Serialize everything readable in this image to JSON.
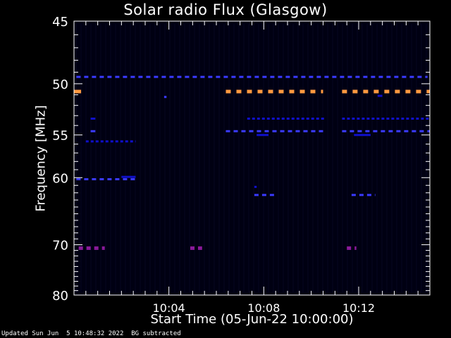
{
  "footer": {
    "updated": "Updated Sun Jun  5 10:48:32 2022",
    "mode": "BG subtracted"
  },
  "chart_data": {
    "type": "heatmap",
    "title": "Solar radio Flux (Glasgow)",
    "xlabel": "Start Time (05-Jun-22 10:00:00)",
    "ylabel": "Frequency [MHz]",
    "x_range_minutes": [
      0,
      15
    ],
    "x_ticks": [
      {
        "minute": 4,
        "label": "10:04"
      },
      {
        "minute": 8,
        "label": "10:08"
      },
      {
        "minute": 12,
        "label": "10:12"
      }
    ],
    "y_range_mhz": [
      45,
      80
    ],
    "y_reciprocal": true,
    "y_ticks": [
      {
        "mhz": 45,
        "label": "45"
      },
      {
        "mhz": 50,
        "label": "50"
      },
      {
        "mhz": 55,
        "label": "55"
      },
      {
        "mhz": 60,
        "label": "60"
      },
      {
        "mhz": 70,
        "label": "70"
      },
      {
        "mhz": 80,
        "label": "80"
      }
    ],
    "background_color": "#000012",
    "colors": {
      "weak": "#1010c8",
      "medium": "#3a3aff",
      "strong": "#8a1a9a",
      "hot": "#ff9a40"
    },
    "features": [
      {
        "mhz": 49.4,
        "t_start": 0.1,
        "t_end": 14.9,
        "level": "medium",
        "style": "dashed"
      },
      {
        "mhz": 50.7,
        "t_start": 0.0,
        "t_end": 0.3,
        "level": "hot",
        "style": "solid"
      },
      {
        "mhz": 50.7,
        "t_start": 6.4,
        "t_end": 10.5,
        "level": "hot",
        "style": "dashed"
      },
      {
        "mhz": 50.7,
        "t_start": 11.3,
        "t_end": 15.0,
        "level": "hot",
        "style": "dashed"
      },
      {
        "mhz": 51.2,
        "t_start": 3.8,
        "t_end": 3.9,
        "level": "medium",
        "style": "solid"
      },
      {
        "mhz": 51.1,
        "t_start": 12.8,
        "t_end": 13.0,
        "level": "weak",
        "style": "solid"
      },
      {
        "mhz": 53.3,
        "t_start": 0.7,
        "t_end": 0.9,
        "level": "weak",
        "style": "solid"
      },
      {
        "mhz": 53.3,
        "t_start": 7.3,
        "t_end": 10.6,
        "level": "weak",
        "style": "dashed"
      },
      {
        "mhz": 53.3,
        "t_start": 11.3,
        "t_end": 15.0,
        "level": "weak",
        "style": "dashed"
      },
      {
        "mhz": 54.6,
        "t_start": 0.7,
        "t_end": 0.9,
        "level": "medium",
        "style": "solid"
      },
      {
        "mhz": 54.6,
        "t_start": 6.4,
        "t_end": 10.5,
        "level": "medium",
        "style": "dashed"
      },
      {
        "mhz": 54.6,
        "t_start": 11.3,
        "t_end": 15.0,
        "level": "medium",
        "style": "dashed"
      },
      {
        "mhz": 55.0,
        "t_start": 7.7,
        "t_end": 8.2,
        "level": "weak",
        "style": "solid"
      },
      {
        "mhz": 55.0,
        "t_start": 11.8,
        "t_end": 12.5,
        "level": "weak",
        "style": "solid"
      },
      {
        "mhz": 55.7,
        "t_start": 0.5,
        "t_end": 2.6,
        "level": "weak",
        "style": "dashed"
      },
      {
        "mhz": 60.2,
        "t_start": 0.1,
        "t_end": 2.7,
        "level": "medium",
        "style": "dashed"
      },
      {
        "mhz": 59.9,
        "t_start": 2.0,
        "t_end": 2.6,
        "level": "weak",
        "style": "solid"
      },
      {
        "mhz": 61.2,
        "t_start": 7.6,
        "t_end": 7.7,
        "level": "weak",
        "style": "solid"
      },
      {
        "mhz": 62.3,
        "t_start": 7.6,
        "t_end": 8.5,
        "level": "medium",
        "style": "dashed"
      },
      {
        "mhz": 62.3,
        "t_start": 11.7,
        "t_end": 12.7,
        "level": "medium",
        "style": "dashed"
      },
      {
        "mhz": 70.6,
        "t_start": 0.2,
        "t_end": 1.3,
        "level": "strong",
        "style": "dashed"
      },
      {
        "mhz": 70.6,
        "t_start": 4.9,
        "t_end": 5.4,
        "level": "strong",
        "style": "dashed"
      },
      {
        "mhz": 70.6,
        "t_start": 11.5,
        "t_end": 11.9,
        "level": "strong",
        "style": "dashed"
      }
    ]
  }
}
